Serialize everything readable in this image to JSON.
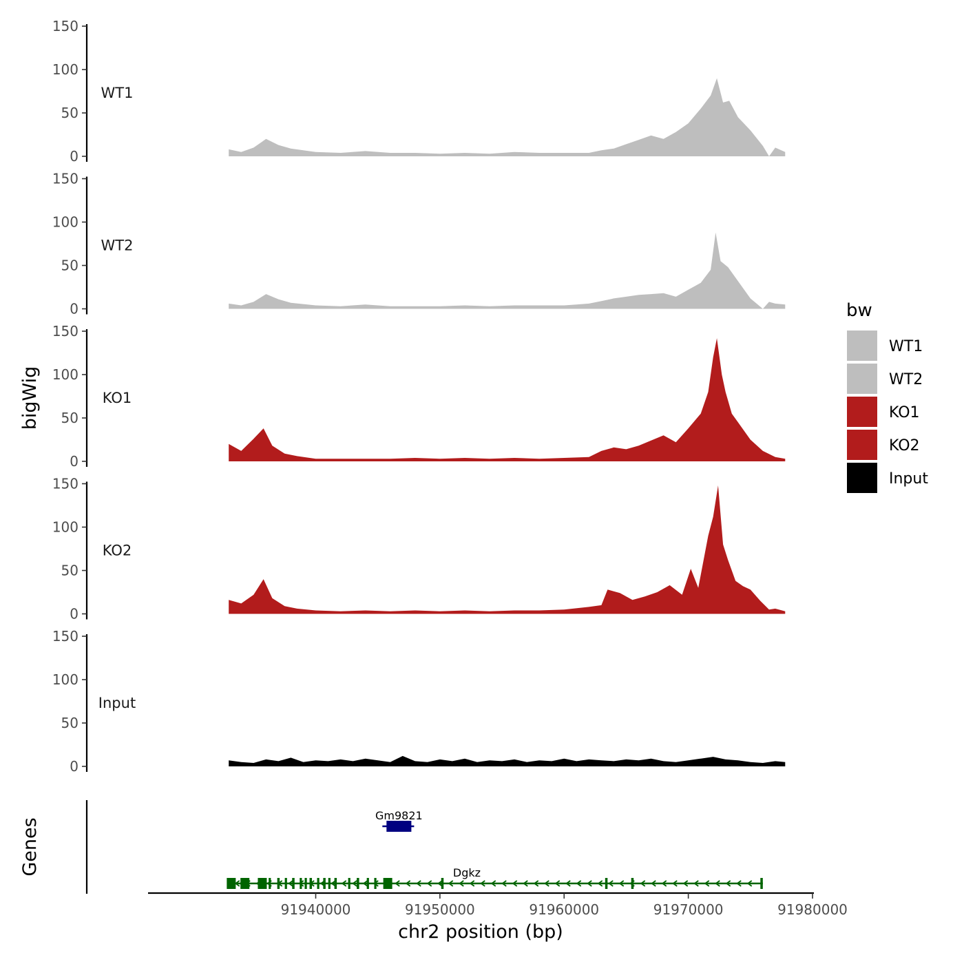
{
  "chart_data": {
    "type": "area",
    "ylabel": "bigWig",
    "xlabel": "chr2 position (bp)",
    "genes_label": "Genes",
    "xlim": [
      91926500,
      91980000
    ],
    "data_range": [
      91933000,
      91977800
    ],
    "x_ticks": [
      91940000,
      91950000,
      91960000,
      91970000,
      91980000
    ],
    "x_tick_labels": [
      "91940000",
      "91950000",
      "91960000",
      "91970000",
      "91980000"
    ],
    "ylim": [
      0,
      150
    ],
    "y_ticks": [
      0,
      50,
      100,
      150
    ],
    "y_tick_labels": [
      "0",
      "50",
      "100",
      "150"
    ],
    "legend": {
      "title": "bw",
      "entries": [
        {
          "label": "WT1",
          "color": "#bebebe"
        },
        {
          "label": "WT2",
          "color": "#bebebe"
        },
        {
          "label": "KO1",
          "color": "#b21c1c"
        },
        {
          "label": "KO2",
          "color": "#b21c1c"
        },
        {
          "label": "Input",
          "color": "#000000"
        }
      ]
    },
    "series": [
      {
        "name": "WT1",
        "color": "#bebebe",
        "x": [
          91933000,
          91934000,
          91935000,
          91936000,
          91937000,
          91938000,
          91940000,
          91942000,
          91944000,
          91946000,
          91948000,
          91950000,
          91952000,
          91954000,
          91956000,
          91958000,
          91960000,
          91962000,
          91963000,
          91964000,
          91965000,
          91966000,
          91967000,
          91968000,
          91969000,
          91970000,
          91971000,
          91971800,
          91972300,
          91972800,
          91973300,
          91974000,
          91975000,
          91976000,
          91976500,
          91977000,
          91977800
        ],
        "values": [
          8,
          5,
          10,
          20,
          13,
          9,
          5,
          4,
          6,
          4,
          4,
          3,
          4,
          3,
          5,
          4,
          4,
          4,
          7,
          9,
          14,
          19,
          24,
          20,
          28,
          38,
          55,
          70,
          90,
          62,
          64,
          45,
          30,
          12,
          0,
          10,
          5
        ]
      },
      {
        "name": "WT2",
        "color": "#bebebe",
        "x": [
          91933000,
          91934000,
          91935000,
          91936000,
          91937000,
          91938000,
          91940000,
          91942000,
          91944000,
          91946000,
          91948000,
          91950000,
          91952000,
          91954000,
          91956000,
          91958000,
          91960000,
          91961000,
          91962000,
          91963000,
          91964000,
          91965000,
          91966000,
          91967000,
          91968000,
          91969000,
          91970000,
          91971000,
          91971800,
          91972200,
          91972600,
          91973200,
          91974000,
          91975000,
          91976000,
          91976500,
          91977000,
          91977800
        ],
        "values": [
          6,
          4,
          8,
          17,
          11,
          7,
          4,
          3,
          5,
          3,
          3,
          3,
          4,
          3,
          4,
          4,
          4,
          5,
          6,
          9,
          12,
          14,
          16,
          17,
          18,
          14,
          22,
          30,
          45,
          88,
          55,
          48,
          32,
          12,
          0,
          8,
          6,
          5
        ]
      },
      {
        "name": "KO1",
        "color": "#b21c1c",
        "x": [
          91933000,
          91934000,
          91935000,
          91935800,
          91936500,
          91937500,
          91938500,
          91940000,
          91942000,
          91944000,
          91946000,
          91948000,
          91950000,
          91952000,
          91954000,
          91956000,
          91958000,
          91960000,
          91962000,
          91963000,
          91964000,
          91965000,
          91966000,
          91967000,
          91968000,
          91969000,
          91970000,
          91971000,
          91971600,
          91972000,
          91972300,
          91972700,
          91973000,
          91973500,
          91974000,
          91975000,
          91976000,
          91977000,
          91977800
        ],
        "values": [
          20,
          12,
          26,
          38,
          18,
          9,
          6,
          3,
          3,
          3,
          3,
          4,
          3,
          4,
          3,
          4,
          3,
          4,
          5,
          12,
          16,
          14,
          18,
          24,
          30,
          22,
          38,
          55,
          80,
          120,
          142,
          100,
          80,
          55,
          45,
          25,
          12,
          5,
          3
        ]
      },
      {
        "name": "KO2",
        "color": "#b21c1c",
        "x": [
          91933000,
          91934000,
          91935000,
          91935800,
          91936500,
          91937500,
          91938500,
          91940000,
          91942000,
          91944000,
          91946000,
          91948000,
          91950000,
          91952000,
          91954000,
          91956000,
          91958000,
          91960000,
          91962000,
          91963000,
          91963500,
          91964500,
          91965500,
          91966500,
          91967500,
          91968500,
          91969500,
          91970200,
          91970800,
          91971600,
          91972000,
          91972400,
          91972800,
          91973200,
          91973800,
          91974400,
          91975000,
          91975800,
          91976500,
          91977000,
          91977800
        ],
        "values": [
          16,
          12,
          22,
          40,
          18,
          9,
          6,
          4,
          3,
          4,
          3,
          4,
          3,
          4,
          3,
          4,
          4,
          5,
          8,
          10,
          28,
          24,
          16,
          20,
          25,
          33,
          22,
          52,
          30,
          90,
          112,
          148,
          80,
          62,
          38,
          32,
          28,
          15,
          5,
          6,
          3
        ]
      },
      {
        "name": "Input",
        "color": "#000000",
        "x": [
          91933000,
          91934000,
          91935000,
          91936000,
          91937000,
          91938000,
          91939000,
          91940000,
          91941000,
          91942000,
          91943000,
          91944000,
          91945000,
          91946000,
          91947000,
          91948000,
          91949000,
          91950000,
          91951000,
          91952000,
          91953000,
          91954000,
          91955000,
          91956000,
          91957000,
          91958000,
          91959000,
          91960000,
          91961000,
          91962000,
          91963000,
          91964000,
          91965000,
          91966000,
          91967000,
          91968000,
          91969000,
          91970000,
          91971000,
          91972000,
          91973000,
          91974000,
          91975000,
          91976000,
          91977000,
          91977800
        ],
        "values": [
          7,
          5,
          4,
          8,
          6,
          10,
          5,
          7,
          6,
          8,
          6,
          9,
          7,
          5,
          12,
          6,
          5,
          8,
          6,
          9,
          5,
          7,
          6,
          8,
          5,
          7,
          6,
          9,
          6,
          8,
          7,
          6,
          8,
          7,
          9,
          6,
          5,
          7,
          9,
          11,
          8,
          7,
          5,
          4,
          6,
          5
        ]
      }
    ],
    "genes": [
      {
        "name": "Gm9821",
        "strand": "+",
        "start": 91945700,
        "end": 91947700,
        "color": "#000080"
      },
      {
        "name": "Dgkz",
        "strand": "-",
        "start": 91933000,
        "end": 91976000,
        "color": "#006400",
        "exons": [
          91933200,
          91934300,
          91935700,
          91937000,
          91938200,
          91939600,
          91940700,
          91941600,
          91943400,
          91945800,
          91950200,
          91963400,
          91965500,
          91975900
        ]
      }
    ]
  }
}
